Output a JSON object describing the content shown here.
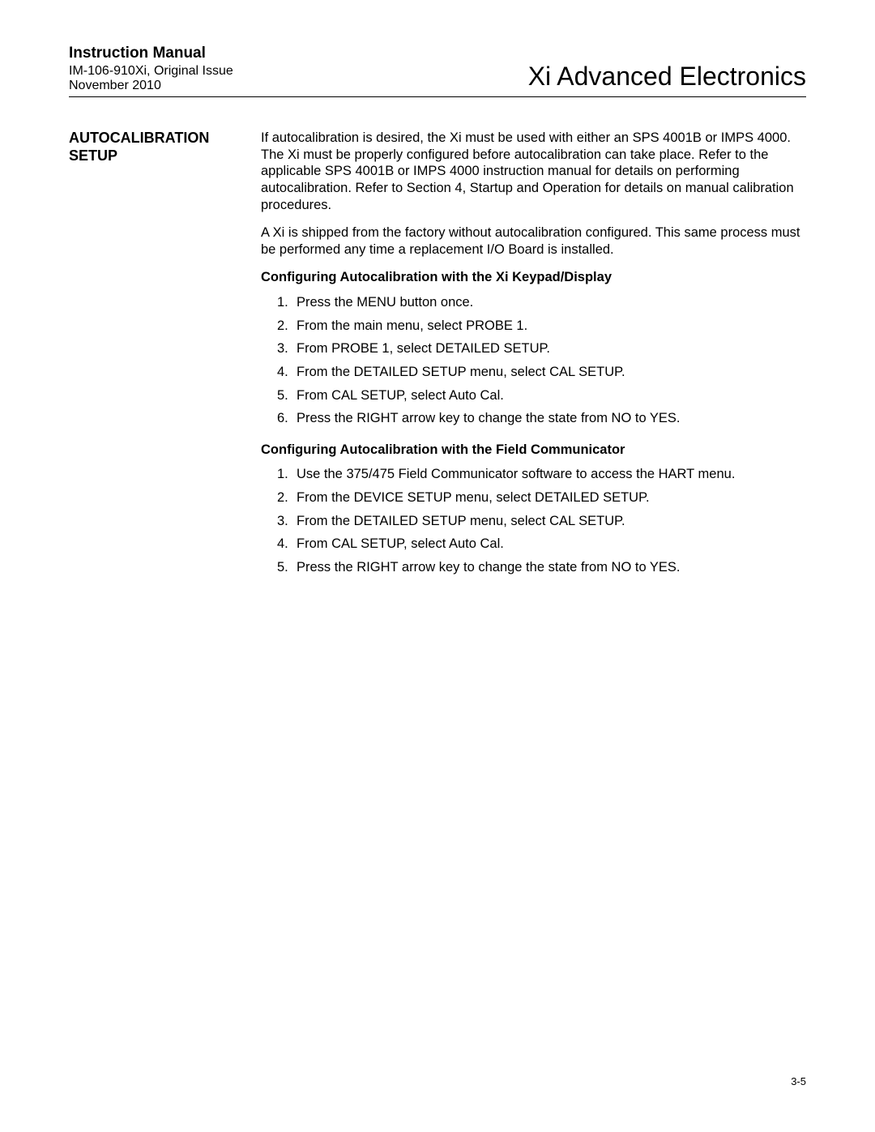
{
  "header": {
    "manual_title": "Instruction Manual",
    "issue": "IM-106-910Xi, Original Issue",
    "date": "November 2010",
    "product": "Xi Advanced Electronics"
  },
  "section": {
    "label": "AUTOCALIBRATION SETUP",
    "para1": "If autocalibration is desired, the Xi must be used with either an SPS 4001B or IMPS 4000.  The Xi must be properly configured before autocalibration can take place.  Refer to the applicable SPS 4001B or IMPS 4000 instruction manual for details on performing autocalibration.  Refer to Section 4, Startup and Operation for details on manual calibration procedures.",
    "para2": "A Xi is shipped from the factory without autocalibration configured.  This same process must be performed any time a replacement I/O Board is installed.",
    "sub1_title": "Configuring Autocalibration with the Xi Keypad/Display",
    "list1": [
      {
        "n": "1.",
        "t": "Press the MENU button once."
      },
      {
        "n": "2.",
        "t": "From the main menu, select PROBE 1."
      },
      {
        "n": "3.",
        "t": "From PROBE 1, select DETAILED SETUP."
      },
      {
        "n": "4.",
        "t": "From the DETAILED SETUP menu, select CAL SETUP."
      },
      {
        "n": "5.",
        "t": "From CAL SETUP, select Auto Cal."
      },
      {
        "n": "6.",
        "t": "Press the RIGHT arrow key to change the state from NO to YES."
      }
    ],
    "sub2_title": "Configuring Autocalibration with the Field Communicator",
    "list2": [
      {
        "n": "1.",
        "t": "Use the 375/475 Field Communicator software to access the HART menu."
      },
      {
        "n": "2.",
        "t": "From the DEVICE SETUP menu, select DETAILED SETUP."
      },
      {
        "n": "3.",
        "t": "From the DETAILED SETUP menu, select CAL SETUP."
      },
      {
        "n": "4.",
        "t": "From CAL SETUP, select Auto Cal."
      },
      {
        "n": "5.",
        "t": "Press the RIGHT arrow key to change the state from NO to YES."
      }
    ]
  },
  "page_number": "3-5"
}
